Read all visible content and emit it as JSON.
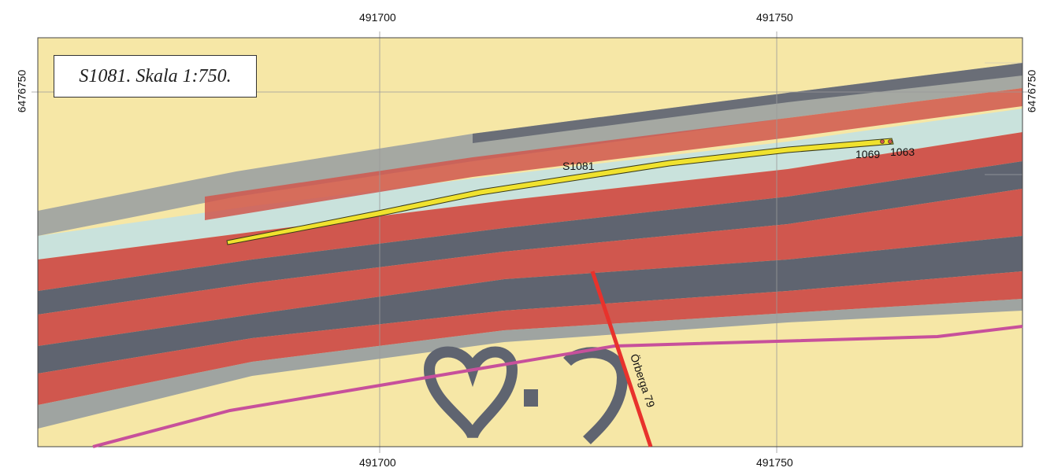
{
  "map": {
    "title": "S1081. Skala 1:750.",
    "easting_labels": [
      "491700",
      "491750"
    ],
    "northing_label": "6476750",
    "features": {
      "trench_label": "S1081",
      "feature_a": "1069",
      "feature_b": "1063",
      "road_label": "Örberga 79"
    },
    "colors": {
      "background": "#f6e7a6",
      "red_band": "#d0574e",
      "dark_band": "#5f6470",
      "light_band": "#c9e2dc",
      "trench": "#f0e22e",
      "boundary": "#c7509b",
      "road": "#e8322c"
    }
  }
}
